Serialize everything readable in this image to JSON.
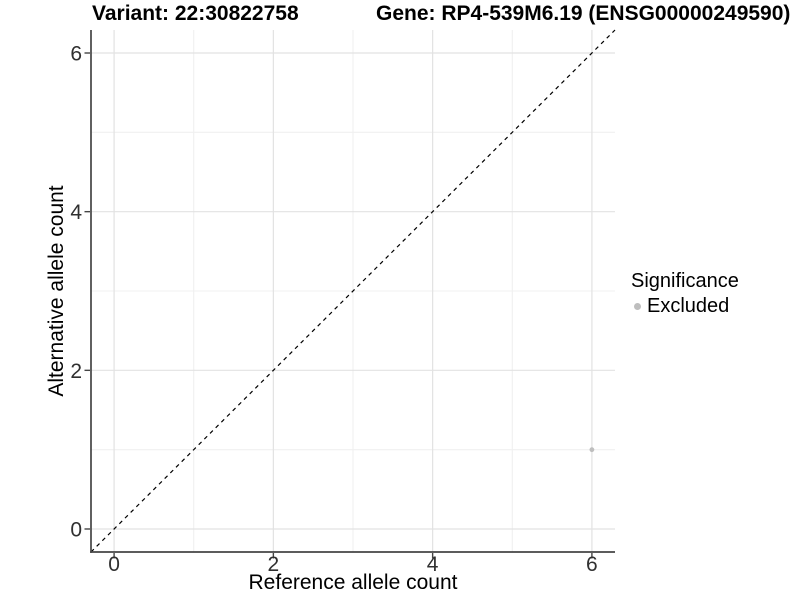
{
  "chart_data": {
    "type": "scatter",
    "variant_title": "Variant: 22:30822758",
    "gene_title": "Gene: RP4-539M6.19 (ENSG00000249590)",
    "xlabel": "Reference allele count",
    "ylabel": "Alternative allele count",
    "xlim": [
      -0.29,
      6.29
    ],
    "ylim": [
      -0.29,
      6.29
    ],
    "x_major_ticks": [
      0,
      2,
      4,
      6
    ],
    "y_major_ticks": [
      0,
      2,
      4,
      6
    ],
    "x_minor_ticks": [
      1,
      3,
      5
    ],
    "y_minor_ticks": [
      1,
      3,
      5
    ],
    "grid": true,
    "series": [
      {
        "name": "Excluded",
        "color": "#bebebe",
        "points": [
          {
            "x": 6,
            "y": 1
          }
        ]
      }
    ],
    "reference_line": {
      "kind": "identity",
      "equation": "y = x",
      "style": "dashed",
      "color": "#000000"
    },
    "legend": {
      "title": "Significance",
      "position": "right",
      "entries": [
        {
          "label": "Excluded",
          "color": "#bebebe"
        }
      ]
    },
    "colors": {
      "background": "#ffffff",
      "major_grid": "#e2e2e2",
      "minor_grid": "#f0f0f0",
      "axis_line": "#454545",
      "tick_label": "#303030",
      "point_excluded": "#bebebe"
    }
  }
}
